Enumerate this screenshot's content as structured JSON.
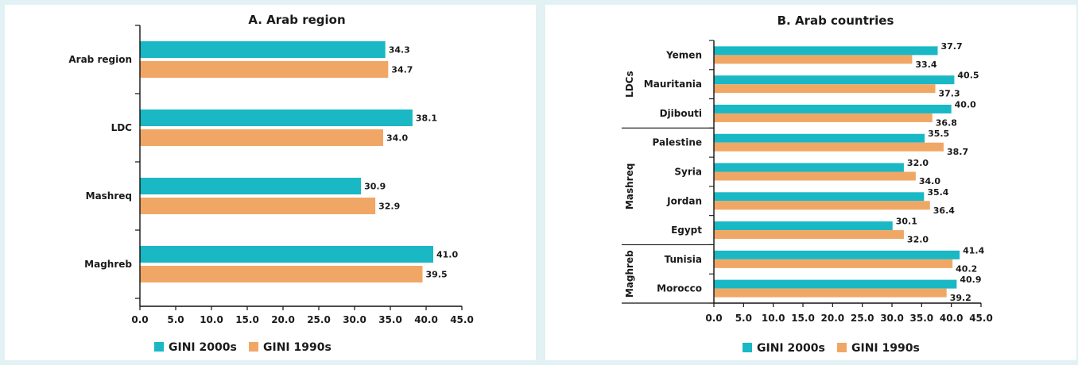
{
  "colors": {
    "gini_2000s": "#19b8c4",
    "gini_1990s": "#f0a765",
    "axis": "#111111"
  },
  "chart_data": [
    {
      "type": "bar",
      "orientation": "horizontal",
      "title": "A. Arab region",
      "categories": [
        "Arab region",
        "LDC",
        "Mashreq",
        "Maghreb"
      ],
      "series": [
        {
          "name": "GINI 2000s",
          "values": [
            34.3,
            38.1,
            30.9,
            41.0
          ],
          "labels": [
            "34.3",
            "38.1",
            "30.9",
            "41.0"
          ]
        },
        {
          "name": "GINI 1990s",
          "values": [
            34.7,
            34.0,
            32.9,
            39.5
          ],
          "labels": [
            "34.7",
            "34.0",
            "32.9",
            "39.5"
          ]
        }
      ],
      "xlim": [
        0,
        45
      ],
      "xticks": [
        "0.0",
        "5.0",
        "10.0",
        "15.0",
        "20.0",
        "25.0",
        "30.0",
        "35.0",
        "40.0",
        "45.0"
      ],
      "legend": "bottom",
      "grid": false
    },
    {
      "type": "bar",
      "orientation": "horizontal",
      "title": "B. Arab countries",
      "categories": [
        "Yemen",
        "Mauritania",
        "Djibouti",
        "Palestine",
        "Syria",
        "Jordan",
        "Egypt",
        "Tunisia",
        "Morocco"
      ],
      "groups": [
        {
          "label": "LDCs",
          "categories": [
            "Yemen",
            "Mauritania",
            "Djibouti"
          ]
        },
        {
          "label": "Mashreq",
          "categories": [
            "Palestine",
            "Syria",
            "Jordan",
            "Egypt"
          ]
        },
        {
          "label": "Maghreb",
          "categories": [
            "Tunisia",
            "Morocco"
          ]
        }
      ],
      "series": [
        {
          "name": "GINI 2000s",
          "values": [
            37.7,
            40.5,
            40.0,
            35.5,
            32.0,
            35.4,
            30.1,
            41.4,
            40.9
          ],
          "labels": [
            "37.7",
            "40.5",
            "40.0",
            "35.5",
            "32.0",
            "35.4",
            "30.1",
            "41.4",
            "40.9"
          ]
        },
        {
          "name": "GINI 1990s",
          "values": [
            33.4,
            37.3,
            36.8,
            38.7,
            34.0,
            36.4,
            32.0,
            40.2,
            39.2
          ],
          "labels": [
            "33.4",
            "37.3",
            "36.8",
            "38.7",
            "34.0",
            "36.4",
            "32.0",
            "40.2",
            "39.2"
          ]
        }
      ],
      "xlim": [
        0,
        45
      ],
      "xticks": [
        "0.0",
        "5.0",
        "10.0",
        "15.0",
        "20.0",
        "25.0",
        "30.0",
        "35.0",
        "40.0",
        "45.0"
      ],
      "legend": "bottom",
      "grid": false
    }
  ]
}
